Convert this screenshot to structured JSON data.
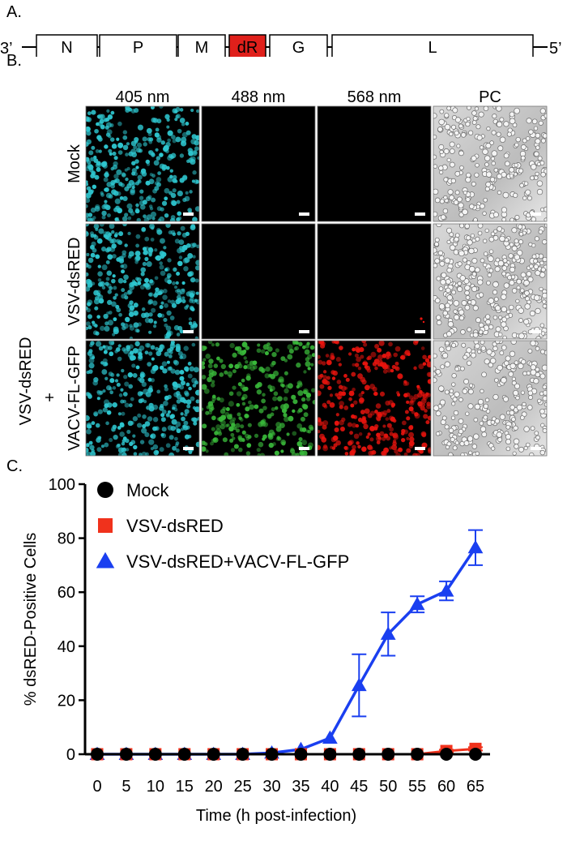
{
  "panels": {
    "a": "A.",
    "b": "B.",
    "c": "C."
  },
  "genome": {
    "left_end": "3’",
    "right_end": "5’",
    "genes": [
      "N",
      "P",
      "M",
      "dR",
      "G",
      "L"
    ],
    "highlight_gene": "dR",
    "highlight_color": "#e0201b"
  },
  "microscopy": {
    "columns": [
      "405 nm",
      "488 nm",
      "568 nm",
      "PC"
    ],
    "rows": [
      {
        "label": "Mock",
        "channels": [
          "cyan",
          "black",
          "black",
          "phase"
        ]
      },
      {
        "label": "VSV-dsRED",
        "channels": [
          "cyan",
          "black",
          "black-speck",
          "phase"
        ]
      },
      {
        "label_line1": "VSV-dsRED",
        "label_line2": "+",
        "label_line3": "VACV-FL-GFP",
        "channels": [
          "cyan",
          "green",
          "red",
          "phase"
        ]
      }
    ],
    "colors": {
      "cyan": "#2ec6cf",
      "green": "#39b83a",
      "red": "#e8140e"
    }
  },
  "chart_data": {
    "type": "line",
    "title": "",
    "xlabel": "Time (h post-infection)",
    "ylabel": "% dsRED-Positive Cells",
    "x": [
      0,
      5,
      10,
      15,
      20,
      25,
      30,
      35,
      40,
      45,
      50,
      55,
      60,
      65
    ],
    "ylim": [
      0,
      100
    ],
    "yticks": [
      0,
      20,
      40,
      60,
      80,
      100
    ],
    "legend_position": "top-left",
    "series": [
      {
        "name": "Mock",
        "color": "#000000",
        "marker": "circle",
        "values": [
          0,
          0,
          0,
          0,
          0,
          0,
          0,
          0,
          0,
          0,
          0,
          0,
          0,
          0
        ],
        "errors": [
          0,
          0,
          0,
          0,
          0,
          0,
          0,
          0,
          0,
          0,
          0,
          0,
          0,
          0
        ]
      },
      {
        "name": "VSV-dsRED",
        "color": "#f0321c",
        "marker": "square",
        "values": [
          0,
          0,
          0,
          0,
          0,
          0,
          0,
          0,
          0,
          0,
          0,
          0,
          1.2,
          2
        ],
        "errors": [
          0,
          0,
          0,
          0,
          0,
          0,
          0,
          0,
          0,
          0,
          0,
          0,
          0.5,
          0.6
        ]
      },
      {
        "name": "VSV-dsRED+VACV-FL-GFP",
        "color": "#1a3ff0",
        "marker": "triangle",
        "values": [
          0,
          0,
          0,
          0,
          0,
          0,
          0.5,
          1.8,
          6,
          25.5,
          44.5,
          55.5,
          60.5,
          76.5
        ],
        "errors": [
          0,
          0,
          0,
          0,
          0,
          0,
          0,
          0,
          0,
          11.5,
          8,
          3,
          3.5,
          6.5
        ]
      }
    ]
  }
}
